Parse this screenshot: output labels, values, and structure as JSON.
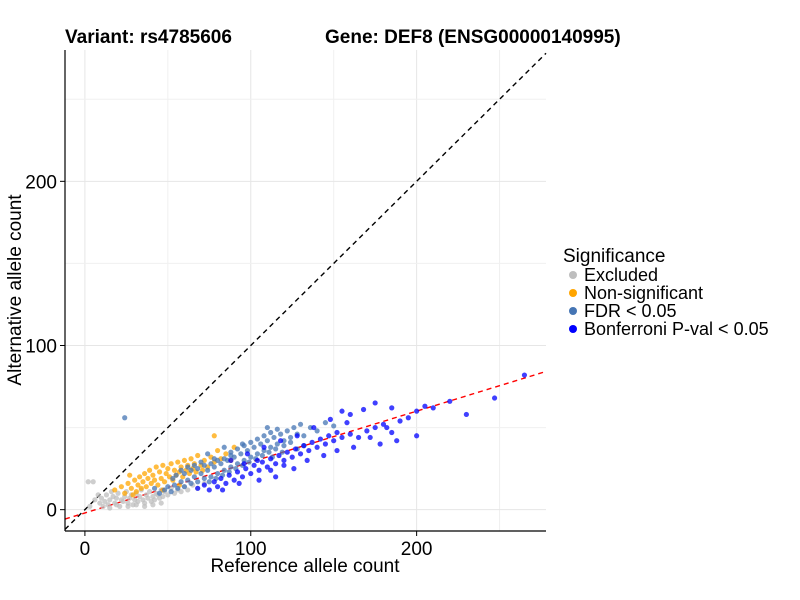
{
  "chart_data": {
    "type": "scatter",
    "title_variant": "Variant: rs4785606",
    "title_gene": "Gene: DEF8 (ENSG00000140995)",
    "xlabel": "Reference allele count",
    "ylabel": "Alternative allele count",
    "xlim": [
      -12,
      278
    ],
    "ylim": [
      -13,
      280
    ],
    "x_ticks": [
      0,
      100,
      200
    ],
    "y_ticks": [
      0,
      100,
      200
    ],
    "grid": true,
    "reference_lines": [
      {
        "name": "identity",
        "slope": 1,
        "intercept": 0,
        "color": "#000000",
        "style": "dashed"
      },
      {
        "name": "fit",
        "slope": 0.31,
        "intercept": -2,
        "color": "#ff0000",
        "style": "dashed"
      }
    ],
    "legend": {
      "title": "Significance",
      "position": "right",
      "entries": [
        {
          "label": "Excluded",
          "color": "#bebebe"
        },
        {
          "label": "Non-significant",
          "color": "#ffa500"
        },
        {
          "label": "FDR < 0.05",
          "color": "#4575b4"
        },
        {
          "label": "Bonferroni P-val < 0.05",
          "color": "#0000ff"
        }
      ]
    },
    "series": [
      {
        "name": "Excluded",
        "color": "#bebebe",
        "points": [
          [
            2,
            17
          ],
          [
            5,
            17
          ],
          [
            3,
            2
          ],
          [
            6,
            6
          ],
          [
            8,
            9
          ],
          [
            9,
            4
          ],
          [
            10,
            7
          ],
          [
            12,
            5
          ],
          [
            13,
            9
          ],
          [
            14,
            3
          ],
          [
            15,
            6
          ],
          [
            16,
            11
          ],
          [
            17,
            8
          ],
          [
            18,
            4
          ],
          [
            19,
            7
          ],
          [
            20,
            10
          ],
          [
            21,
            2
          ],
          [
            22,
            6
          ],
          [
            23,
            5
          ],
          [
            24,
            8
          ],
          [
            25,
            11
          ],
          [
            26,
            4
          ],
          [
            27,
            7
          ],
          [
            28,
            9
          ],
          [
            29,
            3
          ],
          [
            30,
            6
          ],
          [
            31,
            10
          ],
          [
            32,
            5
          ],
          [
            33,
            8
          ],
          [
            34,
            12
          ],
          [
            35,
            6
          ],
          [
            36,
            4
          ],
          [
            37,
            9
          ],
          [
            38,
            7
          ],
          [
            39,
            11
          ],
          [
            40,
            5
          ],
          [
            41,
            8
          ],
          [
            42,
            6
          ],
          [
            43,
            10
          ],
          [
            44,
            9
          ],
          [
            45,
            7
          ],
          [
            46,
            12
          ],
          [
            47,
            8
          ],
          [
            48,
            11
          ],
          [
            50,
            9
          ],
          [
            52,
            13
          ],
          [
            54,
            10
          ],
          [
            56,
            12
          ],
          [
            58,
            11
          ],
          [
            60,
            14
          ],
          [
            62,
            12
          ],
          [
            65,
            15
          ],
          [
            68,
            13
          ],
          [
            72,
            16
          ],
          [
            11,
            2
          ],
          [
            15,
            1
          ],
          [
            19,
            3
          ],
          [
            26,
            2
          ],
          [
            31,
            3
          ],
          [
            36,
            2
          ],
          [
            41,
            3
          ],
          [
            46,
            4
          ]
        ]
      },
      {
        "name": "Non-significant",
        "color": "#ffa500",
        "points": [
          [
            18,
            12
          ],
          [
            22,
            14
          ],
          [
            24,
            10
          ],
          [
            26,
            16
          ],
          [
            28,
            13
          ],
          [
            30,
            18
          ],
          [
            31,
            11
          ],
          [
            32,
            15
          ],
          [
            33,
            20
          ],
          [
            34,
            13
          ],
          [
            35,
            17
          ],
          [
            36,
            22
          ],
          [
            37,
            14
          ],
          [
            38,
            19
          ],
          [
            39,
            24
          ],
          [
            40,
            16
          ],
          [
            41,
            21
          ],
          [
            42,
            18
          ],
          [
            43,
            26
          ],
          [
            44,
            15
          ],
          [
            45,
            23
          ],
          [
            46,
            19
          ],
          [
            47,
            27
          ],
          [
            48,
            17
          ],
          [
            49,
            22
          ],
          [
            50,
            25
          ],
          [
            51,
            20
          ],
          [
            52,
            28
          ],
          [
            53,
            18
          ],
          [
            54,
            24
          ],
          [
            55,
            21
          ],
          [
            56,
            29
          ],
          [
            57,
            23
          ],
          [
            58,
            26
          ],
          [
            59,
            20
          ],
          [
            60,
            30
          ],
          [
            61,
            24
          ],
          [
            62,
            27
          ],
          [
            63,
            22
          ],
          [
            64,
            31
          ],
          [
            65,
            25
          ],
          [
            66,
            28
          ],
          [
            67,
            23
          ],
          [
            68,
            33
          ],
          [
            70,
            27
          ],
          [
            72,
            30
          ],
          [
            74,
            26
          ],
          [
            76,
            32
          ],
          [
            78,
            29
          ],
          [
            80,
            36
          ],
          [
            82,
            31
          ],
          [
            85,
            34
          ],
          [
            88,
            30
          ],
          [
            90,
            38
          ],
          [
            78,
            45
          ],
          [
            27,
            21
          ],
          [
            29,
            9
          ],
          [
            47,
            12
          ],
          [
            57,
            15
          ],
          [
            71,
            24
          ]
        ]
      },
      {
        "name": "FDR < 0.05",
        "color": "#4575b4",
        "points": [
          [
            24,
            56
          ],
          [
            42,
            13
          ],
          [
            45,
            10
          ],
          [
            48,
            12
          ],
          [
            50,
            14
          ],
          [
            52,
            11
          ],
          [
            54,
            15
          ],
          [
            56,
            13
          ],
          [
            58,
            17
          ],
          [
            60,
            14
          ],
          [
            62,
            18
          ],
          [
            64,
            16
          ],
          [
            66,
            20
          ],
          [
            68,
            17
          ],
          [
            70,
            22
          ],
          [
            72,
            19
          ],
          [
            74,
            24
          ],
          [
            76,
            20
          ],
          [
            78,
            26
          ],
          [
            80,
            22
          ],
          [
            82,
            28
          ],
          [
            84,
            24
          ],
          [
            86,
            30
          ],
          [
            88,
            26
          ],
          [
            90,
            32
          ],
          [
            92,
            28
          ],
          [
            94,
            34
          ],
          [
            96,
            30
          ],
          [
            98,
            36
          ],
          [
            100,
            32
          ],
          [
            102,
            38
          ],
          [
            104,
            34
          ],
          [
            106,
            40
          ],
          [
            108,
            36
          ],
          [
            110,
            42
          ],
          [
            112,
            38
          ],
          [
            114,
            44
          ],
          [
            116,
            40
          ],
          [
            118,
            46
          ],
          [
            120,
            42
          ],
          [
            122,
            48
          ],
          [
            124,
            44
          ],
          [
            126,
            50
          ],
          [
            128,
            46
          ],
          [
            130,
            52
          ],
          [
            132,
            45
          ],
          [
            136,
            50
          ],
          [
            140,
            48
          ],
          [
            145,
            53
          ],
          [
            150,
            51
          ],
          [
            110,
            50
          ],
          [
            113,
            32
          ],
          [
            95,
            40
          ],
          [
            88,
            33
          ],
          [
            84,
            38
          ],
          [
            78,
            31
          ],
          [
            74,
            34
          ],
          [
            70,
            29
          ],
          [
            66,
            27
          ],
          [
            62,
            26
          ],
          [
            58,
            24
          ],
          [
            55,
            21
          ],
          [
            53,
            19
          ],
          [
            60,
            22
          ],
          [
            64,
            24
          ],
          [
            68,
            25
          ],
          [
            72,
            27
          ],
          [
            76,
            28
          ],
          [
            80,
            30
          ],
          [
            84,
            31
          ],
          [
            88,
            35
          ],
          [
            92,
            37
          ],
          [
            96,
            39
          ],
          [
            100,
            41
          ],
          [
            104,
            43
          ],
          [
            108,
            45
          ],
          [
            112,
            47
          ],
          [
            116,
            49
          ],
          [
            120,
            39
          ],
          [
            124,
            41
          ],
          [
            128,
            37
          ],
          [
            132,
            39
          ],
          [
            75,
            17
          ],
          [
            79,
            19
          ],
          [
            83,
            21
          ],
          [
            87,
            23
          ],
          [
            91,
            25
          ],
          [
            95,
            27
          ],
          [
            99,
            29
          ],
          [
            103,
            31
          ],
          [
            107,
            33
          ],
          [
            111,
            35
          ],
          [
            115,
            37
          ],
          [
            119,
            35
          ]
        ]
      },
      {
        "name": "Bonferroni P-val < 0.05",
        "color": "#0000ff",
        "points": [
          [
            68,
            13
          ],
          [
            72,
            15
          ],
          [
            75,
            12
          ],
          [
            78,
            17
          ],
          [
            80,
            14
          ],
          [
            82,
            19
          ],
          [
            85,
            16
          ],
          [
            87,
            21
          ],
          [
            90,
            18
          ],
          [
            92,
            23
          ],
          [
            95,
            20
          ],
          [
            97,
            25
          ],
          [
            100,
            22
          ],
          [
            102,
            27
          ],
          [
            105,
            24
          ],
          [
            107,
            29
          ],
          [
            110,
            26
          ],
          [
            112,
            31
          ],
          [
            115,
            28
          ],
          [
            117,
            33
          ],
          [
            120,
            30
          ],
          [
            122,
            35
          ],
          [
            125,
            32
          ],
          [
            127,
            37
          ],
          [
            130,
            34
          ],
          [
            132,
            39
          ],
          [
            135,
            36
          ],
          [
            137,
            41
          ],
          [
            140,
            38
          ],
          [
            142,
            43
          ],
          [
            145,
            40
          ],
          [
            147,
            45
          ],
          [
            150,
            42
          ],
          [
            152,
            47
          ],
          [
            155,
            44
          ],
          [
            160,
            46
          ],
          [
            165,
            44
          ],
          [
            170,
            48
          ],
          [
            175,
            50
          ],
          [
            180,
            52
          ],
          [
            185,
            47
          ],
          [
            190,
            54
          ],
          [
            195,
            56
          ],
          [
            200,
            60
          ],
          [
            205,
            63
          ],
          [
            210,
            62
          ],
          [
            220,
            66
          ],
          [
            230,
            58
          ],
          [
            247,
            68
          ],
          [
            265,
            82
          ],
          [
            175,
            65
          ],
          [
            185,
            62
          ],
          [
            155,
            60
          ],
          [
            160,
            58
          ],
          [
            168,
            61
          ],
          [
            178,
            40
          ],
          [
            188,
            42
          ],
          [
            138,
            50
          ],
          [
            148,
            55
          ],
          [
            158,
            53
          ],
          [
            128,
            45
          ],
          [
            118,
            42
          ],
          [
            108,
            38
          ],
          [
            98,
            34
          ],
          [
            88,
            30
          ],
          [
            96,
            28
          ],
          [
            104,
            30
          ],
          [
            112,
            24
          ],
          [
            120,
            27
          ],
          [
            126,
            25
          ],
          [
            134,
            30
          ],
          [
            144,
            33
          ],
          [
            152,
            36
          ],
          [
            162,
            38
          ],
          [
            172,
            44
          ],
          [
            182,
            50
          ],
          [
            200,
            45
          ],
          [
            115,
            20
          ],
          [
            105,
            18
          ],
          [
            93,
            16
          ],
          [
            83,
            12
          ]
        ]
      }
    ]
  }
}
